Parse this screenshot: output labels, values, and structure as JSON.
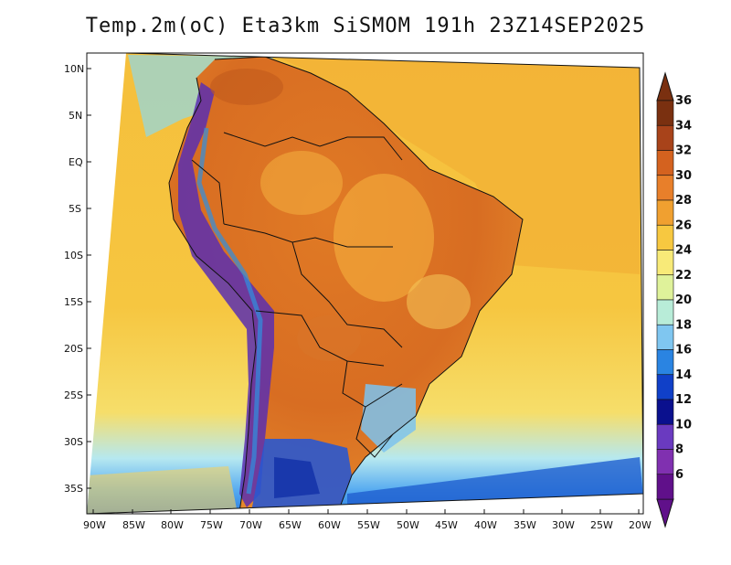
{
  "title": "Temp.2m(oC) Eta3km SiSMOM 191h 23Z14SEP2025",
  "map": {
    "lat_labels": [
      "10N",
      "5N",
      "EQ",
      "5S",
      "10S",
      "15S",
      "20S",
      "25S",
      "30S",
      "35S"
    ],
    "lon_labels": [
      "90W",
      "85W",
      "80W",
      "75W",
      "70W",
      "65W",
      "60W",
      "55W",
      "50W",
      "45W",
      "40W",
      "35W",
      "30W",
      "25W",
      "20W"
    ],
    "variable": "2 m temperature",
    "units": "oC"
  },
  "colorbar": {
    "labels": [
      "36",
      "34",
      "32",
      "30",
      "28",
      "26",
      "24",
      "22",
      "20",
      "18",
      "16",
      "14",
      "12",
      "10",
      "8",
      "6"
    ],
    "colors": [
      "#7a3010",
      "#a8431a",
      "#d4621f",
      "#e87f2a",
      "#f0a030",
      "#f7c840",
      "#f8ea78",
      "#dff29a",
      "#b8ecd8",
      "#7fc6f0",
      "#2a84e2",
      "#1040c8",
      "#0a108e",
      "#6a3ac0",
      "#8030b0",
      "#60108a"
    ]
  }
}
